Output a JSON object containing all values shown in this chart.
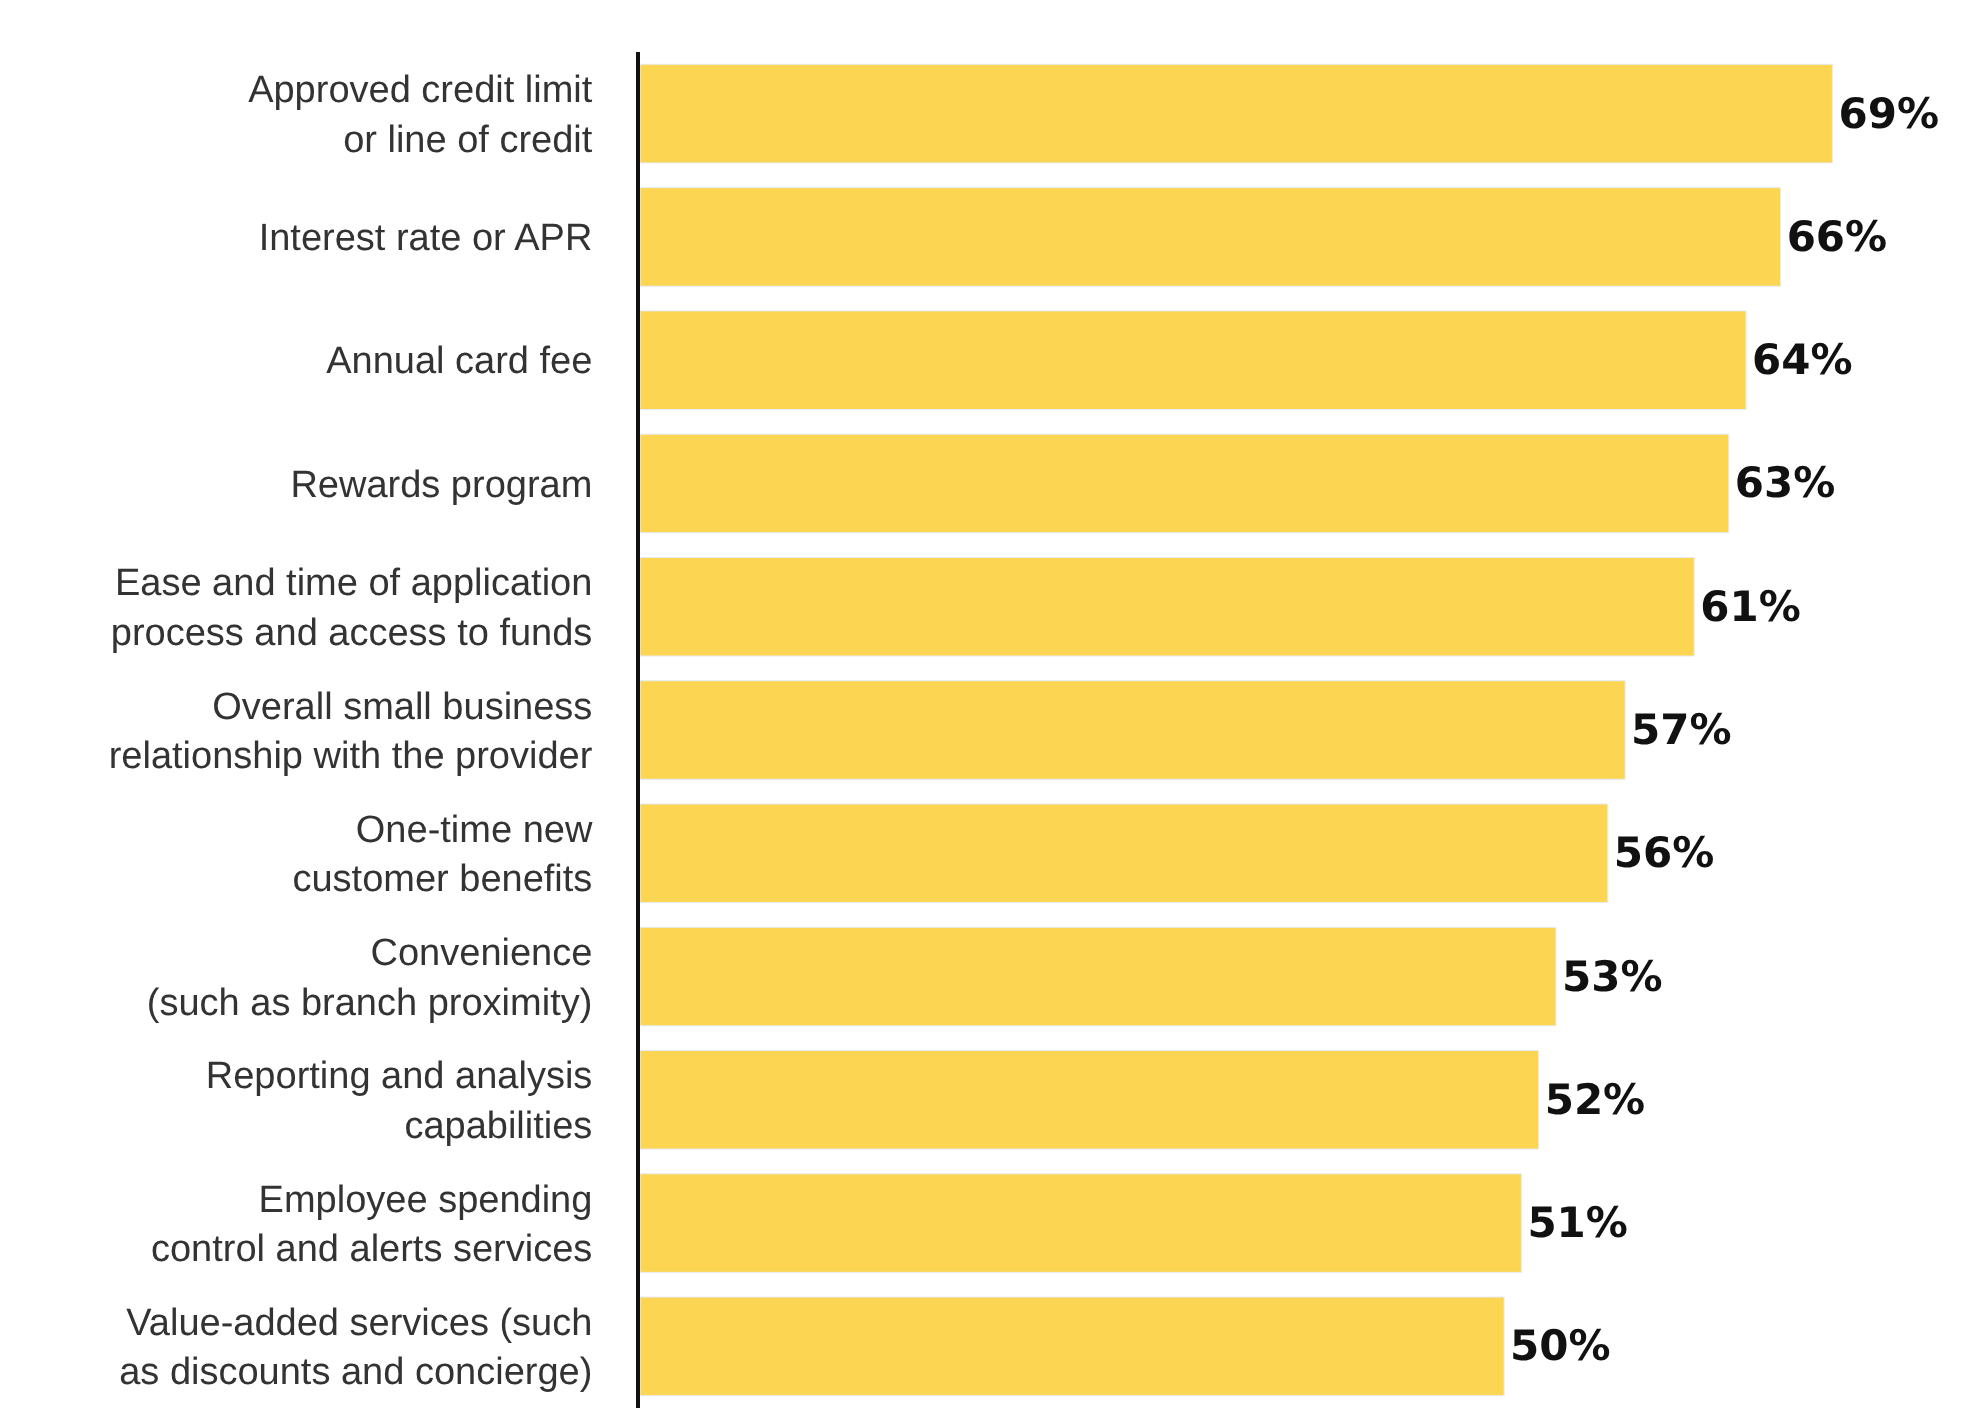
{
  "chart_data": {
    "type": "bar",
    "orientation": "horizontal",
    "categories": [
      "Approved credit limit\nor line of credit",
      "Interest rate or APR",
      "Annual card fee",
      "Rewards program",
      "Ease and time of application\nprocess and access to funds",
      "Overall small business\nrelationship with the provider",
      "One-time new\ncustomer benefits",
      "Convenience\n(such as branch proximity)",
      "Reporting and analysis\ncapabilities",
      "Employee spending\ncontrol and alerts services",
      "Value-added services (such\nas discounts and concierge)"
    ],
    "values": [
      69,
      66,
      64,
      63,
      61,
      57,
      56,
      53,
      52,
      51,
      50
    ],
    "value_labels": [
      "69%",
      "66%",
      "64%",
      "63%",
      "61%",
      "57%",
      "56%",
      "53%",
      "52%",
      "51%",
      "50%"
    ],
    "color": "#fcd653",
    "xlim": [
      0,
      78
    ],
    "tick_labels": "y"
  }
}
